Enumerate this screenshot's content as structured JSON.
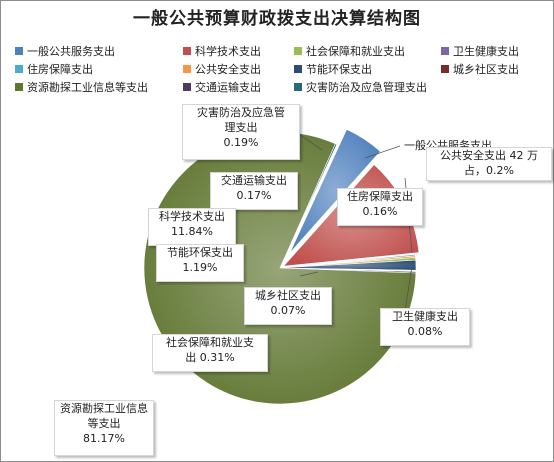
{
  "chart_data": {
    "type": "pie",
    "title": "一般公共预算财政拨支出决算结构图",
    "legend_position": "top",
    "legend": [
      {
        "name": "一般公共服务支出",
        "color": "#4f81bd"
      },
      {
        "name": "科学技术支出",
        "color": "#c0504d"
      },
      {
        "name": "社会保障和就业支出",
        "color": "#9bbb59"
      },
      {
        "name": "卫生健康支出",
        "color": "#8064a2"
      },
      {
        "name": "住房保障支出",
        "color": "#4bacc6"
      },
      {
        "name": "公共安全支出",
        "color": "#f79646"
      },
      {
        "name": "节能环保支出",
        "color": "#2c4d75"
      },
      {
        "name": "城乡社区支出",
        "color": "#772c2a"
      },
      {
        "name": "资源勘探工业信息等支出",
        "color": "#5f7530"
      },
      {
        "name": "交通运输支出",
        "color": "#4d3b62"
      },
      {
        "name": "灾害防治及应急管理支出",
        "color": "#276a7c"
      }
    ],
    "slices": [
      {
        "name": "灾害防治及应急管理支出",
        "value": 0.19,
        "color": "#276a7c"
      },
      {
        "name": "一般公共服务支出",
        "value": 4.73,
        "color": "#4f81bd"
      },
      {
        "name": "科学技术支出",
        "value": 11.84,
        "color": "#c0504d"
      },
      {
        "name": "住房保障支出",
        "value": 0.16,
        "color": "#4bacc6"
      },
      {
        "name": "公共安全支出",
        "value": 0.2,
        "color": "#f79646"
      },
      {
        "name": "社会保障和就业支出",
        "value": 0.31,
        "color": "#9bbb59"
      },
      {
        "name": "节能环保支出",
        "value": 1.19,
        "color": "#2c4d75"
      },
      {
        "name": "卫生健康支出",
        "value": 0.08,
        "color": "#8064a2"
      },
      {
        "name": "城乡社区支出",
        "value": 0.07,
        "color": "#772c2a"
      },
      {
        "name": "交通运输支出",
        "value": 0.17,
        "color": "#4d3b62"
      },
      {
        "name": "资源勘探工业信息等支出",
        "value": 81.17,
        "color": "#5f7530"
      }
    ],
    "labels": [
      {
        "line1": "灾害防治及应急管",
        "line2": "理支出",
        "line3": "0.19%"
      },
      {
        "line1": "一般公共服务支出",
        "line2": "",
        "line3": ""
      },
      {
        "line1": "公共安全支出 42 万",
        "line2": "占，0.2%",
        "line3": ""
      },
      {
        "line1": "住房保障支出",
        "line2": "0.16%",
        "line3": ""
      },
      {
        "line1": "交通运输支出",
        "line2": "0.17%",
        "line3": ""
      },
      {
        "line1": "科学技术支出",
        "line2": "11.84%",
        "line3": ""
      },
      {
        "line1": "节能环保支出",
        "line2": "1.19%",
        "line3": ""
      },
      {
        "line1": "城乡社区支出",
        "line2": "0.07%",
        "line3": ""
      },
      {
        "line1": "卫生健康支出",
        "line2": "0.08%",
        "line3": ""
      },
      {
        "line1": "社会保障和就业支",
        "line2": "出 0.31%",
        "line3": ""
      },
      {
        "line1": "资源勘探工业信息",
        "line2": "等支出",
        "line3": "81.17%"
      }
    ]
  }
}
